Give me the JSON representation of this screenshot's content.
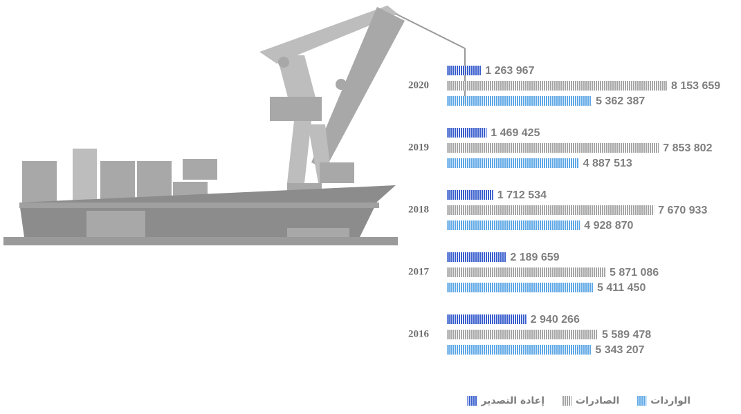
{
  "chart_data": {
    "type": "bar",
    "orientation": "horizontal",
    "categories": [
      "2020",
      "2019",
      "2018",
      "2017",
      "2016"
    ],
    "series": [
      {
        "name": "إعادة التصدير",
        "color": "#3a5fcd",
        "values": [
          1263967,
          1469425,
          1712534,
          2189659,
          2940266
        ],
        "value_labels": [
          "1 263 967",
          "1 469 425",
          "1 712 534",
          "2 189 659",
          "2 940 266"
        ]
      },
      {
        "name": "الصادرات",
        "color": "#a6a6a6",
        "values": [
          8153659,
          7853802,
          7670933,
          5871086,
          5589478
        ],
        "value_labels": [
          "8 153 659",
          "7 853 802",
          "7 670 933",
          "5 871 086",
          "5 589 478"
        ]
      },
      {
        "name": "الواردات",
        "color": "#5fa8e6",
        "values": [
          5362387,
          4887513,
          4928870,
          5411450,
          5343207
        ],
        "value_labels": [
          "5 362 387",
          "4 887 513",
          "4 928 870",
          "5 411 450",
          "5 343 207"
        ]
      }
    ]
  }
}
